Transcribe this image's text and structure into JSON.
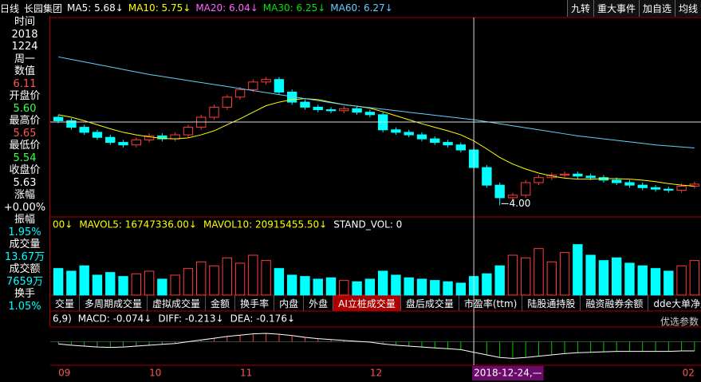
{
  "header": {
    "period": "日线",
    "stock": "长园集团",
    "ma": [
      {
        "text": "MA5: 5.68↓",
        "color": "#ffffff"
      },
      {
        "text": "MA10: 5.75↓",
        "color": "#ffff00"
      },
      {
        "text": "MA20: 6.04↓",
        "color": "#ff66ff"
      },
      {
        "text": "MA30: 6.25↓",
        "color": "#00e600"
      },
      {
        "text": "MA60: 6.27↓",
        "color": "#66ccff"
      }
    ],
    "buttons": [
      "九转",
      "重大事件",
      "加自选",
      "均线"
    ]
  },
  "info_panel": [
    {
      "label": "时间",
      "values": [
        "2018",
        "1224",
        "周一"
      ]
    },
    {
      "label": "数值",
      "values": [
        "6.11"
      ]
    },
    {
      "label": "开盘价",
      "values": [
        "5.60"
      ]
    },
    {
      "label": "最高价",
      "values": [
        "5.65"
      ]
    },
    {
      "label": "最低价",
      "values": [
        "5.54"
      ]
    },
    {
      "label": "收盘价",
      "values": [
        "5.63"
      ]
    },
    {
      "label": "涨幅",
      "values": [
        "+0.00%"
      ]
    },
    {
      "label": "振幅",
      "values": [
        "1.95%"
      ]
    },
    {
      "label": "成交量",
      "values": [
        "13.67万"
      ]
    },
    {
      "label": "成交额",
      "values": [
        "7659万"
      ]
    },
    {
      "label": "换手",
      "values": [
        "1.05%"
      ]
    }
  ],
  "volume_header": [
    "00↓",
    "MAVOL5: 16747336.00↓",
    "MAVOL10: 20915455.50↓",
    "STAND_VOL: 0"
  ],
  "tabs": [
    "交量",
    "多周期成交量",
    "虚拟成交量",
    "金额",
    "换手率",
    "内盘",
    "外盘",
    "AI立桩成交量",
    "盘后成交量",
    "市盈率(ttm)",
    "陆股通持股",
    "融资融券余额",
    "dde大单净量"
  ],
  "macd_header": [
    "6,9)",
    "MACD: -0.074↓",
    "DIFF: -0.213↓",
    "DEA: -0.176↓"
  ],
  "macd_option": "优选参数",
  "chart_data": {
    "type": "candlestick",
    "categories": [
      "09",
      null,
      null,
      null,
      null,
      null,
      null,
      "10",
      null,
      null,
      null,
      null,
      null,
      null,
      "11",
      null,
      null,
      null,
      null,
      null,
      null,
      null,
      null,
      null,
      "12",
      null,
      null,
      null,
      null,
      null,
      null,
      null,
      "2018-12-24,—",
      null,
      null,
      null,
      null,
      null,
      null,
      null,
      null,
      null,
      null,
      null,
      null,
      null,
      null,
      null,
      null,
      "02"
    ],
    "ylim": [
      3.8,
      7.7
    ],
    "up_color": "#ff3c3c",
    "down_color": "#00ffff",
    "candles": {
      "open": [
        5.75,
        5.68,
        5.55,
        5.45,
        5.35,
        5.25,
        5.2,
        5.3,
        5.38,
        5.32,
        5.4,
        5.55,
        5.75,
        5.95,
        6.15,
        6.3,
        6.45,
        6.5,
        6.25,
        6.05,
        5.95,
        5.9,
        5.88,
        5.92,
        5.85,
        5.8,
        5.5,
        5.45,
        5.4,
        5.32,
        5.25,
        5.2,
        5.1,
        4.75,
        4.4,
        4.15,
        4.2,
        4.45,
        4.55,
        4.6,
        4.62,
        4.58,
        4.55,
        4.5,
        4.45,
        4.4,
        4.35,
        4.32,
        4.3,
        4.38
      ],
      "high": [
        5.8,
        5.73,
        5.6,
        5.5,
        5.4,
        5.3,
        5.35,
        5.43,
        5.43,
        5.45,
        5.6,
        5.8,
        6.0,
        6.2,
        6.35,
        6.5,
        6.55,
        6.55,
        6.3,
        6.1,
        6.0,
        5.95,
        5.97,
        5.97,
        5.9,
        5.85,
        5.55,
        5.5,
        5.45,
        5.37,
        5.3,
        5.25,
        5.15,
        4.8,
        4.45,
        4.25,
        4.5,
        4.6,
        4.65,
        4.67,
        4.67,
        4.63,
        4.6,
        4.55,
        4.5,
        4.45,
        4.4,
        4.37,
        4.43,
        4.47
      ],
      "low": [
        5.63,
        5.5,
        5.4,
        5.3,
        5.2,
        5.15,
        5.15,
        5.25,
        5.27,
        5.27,
        5.35,
        5.5,
        5.7,
        5.9,
        6.1,
        6.25,
        6.4,
        6.2,
        6.0,
        5.9,
        5.85,
        5.83,
        5.83,
        5.8,
        5.75,
        5.45,
        5.4,
        5.35,
        5.27,
        5.2,
        5.15,
        5.05,
        4.7,
        4.35,
        4.0,
        4.1,
        4.15,
        4.4,
        4.5,
        4.55,
        4.53,
        4.5,
        4.45,
        4.4,
        4.35,
        4.3,
        4.27,
        4.25,
        4.25,
        4.33
      ],
      "close": [
        5.68,
        5.55,
        5.45,
        5.35,
        5.25,
        5.2,
        5.3,
        5.38,
        5.32,
        5.4,
        5.55,
        5.75,
        5.95,
        6.15,
        6.3,
        6.45,
        6.5,
        6.25,
        6.05,
        5.95,
        5.9,
        5.88,
        5.92,
        5.85,
        5.8,
        5.5,
        5.45,
        5.4,
        5.32,
        5.25,
        5.2,
        5.1,
        4.75,
        4.4,
        4.15,
        4.2,
        4.45,
        4.55,
        4.6,
        4.62,
        4.58,
        4.55,
        4.5,
        4.45,
        4.4,
        4.35,
        4.32,
        4.3,
        4.38,
        4.42
      ]
    },
    "low_annotation": "4.00",
    "series": [
      {
        "name": "MA10",
        "color": "#ffff00",
        "values": [
          5.8,
          5.75,
          5.68,
          5.6,
          5.52,
          5.45,
          5.4,
          5.36,
          5.33,
          5.32,
          5.34,
          5.4,
          5.48,
          5.6,
          5.72,
          5.85,
          5.98,
          6.05,
          6.1,
          6.12,
          6.1,
          6.05,
          6.0,
          5.97,
          5.93,
          5.86,
          5.78,
          5.7,
          5.62,
          5.55,
          5.48,
          5.4,
          5.28,
          5.12,
          4.95,
          4.82,
          4.72,
          4.64,
          4.58,
          4.54,
          4.52,
          4.52,
          4.53,
          4.53,
          4.52,
          4.5,
          4.47,
          4.43,
          4.4,
          4.38
        ]
      },
      {
        "name": "MA60",
        "color": "#66ccff",
        "values": [
          6.95,
          6.9,
          6.85,
          6.8,
          6.75,
          6.7,
          6.65,
          6.6,
          6.56,
          6.52,
          6.48,
          6.44,
          6.4,
          6.36,
          6.32,
          6.28,
          6.24,
          6.2,
          6.16,
          6.12,
          6.08,
          6.04,
          6.0,
          5.97,
          5.94,
          5.91,
          5.88,
          5.85,
          5.82,
          5.79,
          5.76,
          5.73,
          5.7,
          5.66,
          5.62,
          5.58,
          5.54,
          5.5,
          5.46,
          5.42,
          5.38,
          5.35,
          5.32,
          5.29,
          5.26,
          5.23,
          5.2,
          5.18,
          5.16,
          5.14
        ]
      }
    ],
    "volume": {
      "ylim": [
        0,
        45
      ],
      "values": [
        20,
        18,
        22,
        15,
        17,
        14,
        16,
        18,
        12,
        15,
        20,
        25,
        22,
        28,
        24,
        30,
        26,
        20,
        15,
        14,
        12,
        13,
        11,
        10,
        12,
        18,
        15,
        13,
        12,
        11,
        10,
        9,
        14,
        16,
        22,
        30,
        28,
        35,
        25,
        32,
        38,
        30,
        26,
        28,
        24,
        22,
        20,
        18,
        22,
        26
      ]
    },
    "macd": {
      "ylim": [
        -0.5,
        0.3
      ],
      "color": "#ffffff",
      "diff": [
        -0.05,
        -0.08,
        -0.1,
        -0.12,
        -0.13,
        -0.12,
        -0.1,
        -0.08,
        -0.06,
        -0.04,
        0.0,
        0.04,
        0.08,
        0.12,
        0.15,
        0.18,
        0.19,
        0.17,
        0.14,
        0.1,
        0.07,
        0.05,
        0.03,
        0.01,
        -0.01,
        -0.05,
        -0.08,
        -0.1,
        -0.12,
        -0.14,
        -0.16,
        -0.18,
        -0.24,
        -0.3,
        -0.36,
        -0.38,
        -0.36,
        -0.33,
        -0.3,
        -0.27,
        -0.25,
        -0.24,
        -0.23,
        -0.22,
        -0.22,
        -0.22,
        -0.22,
        -0.22,
        -0.21,
        -0.21
      ]
    }
  }
}
